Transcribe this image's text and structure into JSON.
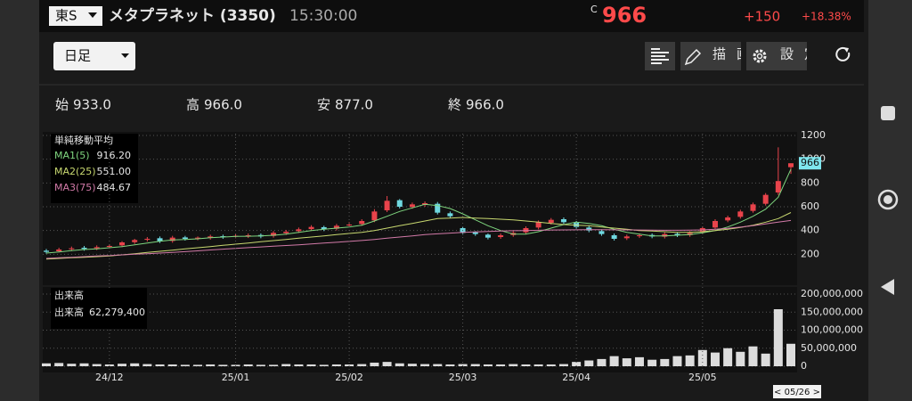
{
  "header": {
    "market": "東S",
    "name": "メタプラネット (3350)",
    "time": "15:30:00",
    "price_prefix": "C",
    "price": "966",
    "change": "+150",
    "change_pct": "+18.38%"
  },
  "toolbar": {
    "period": "日足",
    "draw": "描画",
    "settings": "設定"
  },
  "ohlc": [
    {
      "label": "始",
      "value": "933.0"
    },
    {
      "label": "高",
      "value": "966.0"
    },
    {
      "label": "安",
      "value": "877.0"
    },
    {
      "label": "終",
      "value": "966.0"
    }
  ],
  "chart_data": [
    {
      "type": "candlestick",
      "legend_title": "単純移動平均",
      "open": [
        230,
        225,
        242,
        255,
        250,
        262,
        275,
        302,
        322,
        335,
        312,
        342,
        333,
        338,
        352,
        350,
        352,
        362,
        355,
        378,
        395,
        412,
        428,
        415,
        445,
        455,
        485,
        570,
        655,
        598,
        615,
        625,
        545,
        420,
        385,
        365,
        345,
        362,
        385,
        425,
        465,
        495,
        465,
        425,
        395,
        360,
        335,
        352,
        362,
        348,
        372,
        362,
        385,
        425,
        485,
        515,
        565,
        625,
        720,
        933
      ],
      "high": [
        245,
        255,
        265,
        270,
        275,
        285,
        310,
        330,
        345,
        350,
        355,
        355,
        350,
        365,
        365,
        370,
        375,
        375,
        395,
        405,
        425,
        445,
        440,
        455,
        470,
        495,
        580,
        690,
        665,
        635,
        645,
        640,
        560,
        430,
        395,
        375,
        375,
        395,
        435,
        485,
        505,
        510,
        480,
        440,
        410,
        375,
        365,
        375,
        375,
        385,
        385,
        395,
        435,
        495,
        525,
        575,
        635,
        715,
        1100,
        966
      ],
      "low": [
        205,
        215,
        227,
        230,
        235,
        247,
        260,
        287,
        307,
        295,
        297,
        315,
        318,
        323,
        330,
        335,
        337,
        335,
        340,
        363,
        380,
        397,
        395,
        400,
        430,
        440,
        470,
        555,
        585,
        583,
        600,
        535,
        505,
        365,
        355,
        325,
        330,
        347,
        370,
        410,
        450,
        455,
        415,
        385,
        355,
        315,
        320,
        337,
        335,
        333,
        345,
        347,
        370,
        410,
        470,
        500,
        550,
        610,
        700,
        877
      ],
      "close": [
        220,
        240,
        250,
        245,
        260,
        270,
        300,
        320,
        330,
        310,
        340,
        330,
        340,
        350,
        345,
        355,
        360,
        350,
        380,
        390,
        410,
        430,
        410,
        440,
        450,
        480,
        560,
        650,
        600,
        620,
        630,
        550,
        520,
        380,
        370,
        340,
        360,
        380,
        420,
        470,
        490,
        470,
        430,
        400,
        370,
        330,
        350,
        360,
        350,
        370,
        360,
        380,
        420,
        480,
        510,
        560,
        620,
        700,
        816,
        966
      ],
      "up_color": "#e8434b",
      "down_color": "#6fd8e0",
      "series": [
        {
          "name": "MA1(5)",
          "value_label": "916.20",
          "color": "#7fd67f",
          "values": [
            210,
            220,
            230,
            240,
            245,
            255,
            265,
            280,
            295,
            310,
            320,
            325,
            330,
            340,
            345,
            350,
            352,
            355,
            360,
            370,
            385,
            400,
            410,
            420,
            430,
            445,
            480,
            520,
            560,
            590,
            620,
            610,
            585,
            540,
            490,
            440,
            400,
            370,
            370,
            390,
            420,
            450,
            470,
            460,
            440,
            410,
            385,
            370,
            355,
            355,
            360,
            365,
            380,
            400,
            430,
            470,
            520,
            580,
            680,
            916.2
          ]
        },
        {
          "name": "MA2(25)",
          "value_label": "551.00",
          "color": "#c8d870",
          "values": [
            160,
            165,
            170,
            175,
            180,
            185,
            195,
            205,
            215,
            225,
            235,
            245,
            255,
            265,
            275,
            285,
            295,
            305,
            315,
            325,
            335,
            345,
            355,
            365,
            375,
            385,
            400,
            420,
            440,
            460,
            480,
            500,
            505,
            510,
            505,
            500,
            495,
            490,
            480,
            470,
            460,
            450,
            445,
            440,
            430,
            420,
            410,
            400,
            395,
            390,
            385,
            385,
            390,
            400,
            410,
            425,
            445,
            470,
            500,
            551
          ]
        },
        {
          "name": "MA3(75)",
          "value_label": "484.67",
          "color": "#d27aa8",
          "values": [
            165,
            170,
            175,
            180,
            185,
            190,
            195,
            200,
            205,
            210,
            215,
            222,
            229,
            236,
            243,
            250,
            256,
            262,
            268,
            274,
            280,
            287,
            294,
            301,
            308,
            316,
            325,
            335,
            345,
            355,
            365,
            372,
            378,
            384,
            388,
            392,
            395,
            398,
            400,
            402,
            404,
            405,
            406,
            407,
            407,
            406,
            405,
            404,
            403,
            402,
            402,
            403,
            405,
            410,
            418,
            428,
            440,
            455,
            470,
            484.67
          ]
        }
      ],
      "ylim": [
        0,
        1200
      ],
      "yticks": [
        200,
        400,
        600,
        800,
        1000,
        1200
      ],
      "grid": true
    },
    {
      "type": "bar",
      "legend_title": "出来高",
      "legend_label": "出来高",
      "legend_value": "62,279,400",
      "categories": [
        null,
        null,
        null,
        null,
        null,
        "24/12",
        null,
        null,
        null,
        null,
        null,
        null,
        null,
        null,
        null,
        "25/01",
        null,
        null,
        null,
        null,
        null,
        null,
        null,
        null,
        "25/02",
        null,
        null,
        null,
        null,
        null,
        null,
        null,
        null,
        "25/03",
        null,
        null,
        null,
        null,
        null,
        null,
        null,
        null,
        "25/04",
        null,
        null,
        null,
        null,
        null,
        null,
        null,
        null,
        null,
        "25/05",
        null,
        null,
        null,
        null,
        null,
        null,
        null
      ],
      "values": [
        8000000,
        9000000,
        7000000,
        8000000,
        6000000,
        5000000,
        7000000,
        8000000,
        6000000,
        5000000,
        5000000,
        4000000,
        4000000,
        5000000,
        4000000,
        4000000,
        5000000,
        4000000,
        4000000,
        6000000,
        5000000,
        5000000,
        4000000,
        5000000,
        5000000,
        6000000,
        10000000,
        12000000,
        8000000,
        7000000,
        6000000,
        6000000,
        5000000,
        6000000,
        6000000,
        5000000,
        5000000,
        6000000,
        5000000,
        5000000,
        5000000,
        6000000,
        12000000,
        16000000,
        20000000,
        28000000,
        22000000,
        25000000,
        18000000,
        20000000,
        28000000,
        30000000,
        45000000,
        38000000,
        50000000,
        40000000,
        55000000,
        35000000,
        158000000,
        62279400
      ],
      "color": "#dcdcdc",
      "ylim": [
        0,
        200000000
      ],
      "yticks": [
        0,
        {
          "value": 50000000,
          "label": "50,000,000"
        },
        {
          "value": 100000000,
          "label": "100,000,000"
        },
        {
          "value": 150000000,
          "label": "150,000,000"
        },
        {
          "value": 200000000,
          "label": "200,000,000"
        }
      ],
      "grid": true,
      "cursor_label": "< 05/26 >"
    }
  ]
}
